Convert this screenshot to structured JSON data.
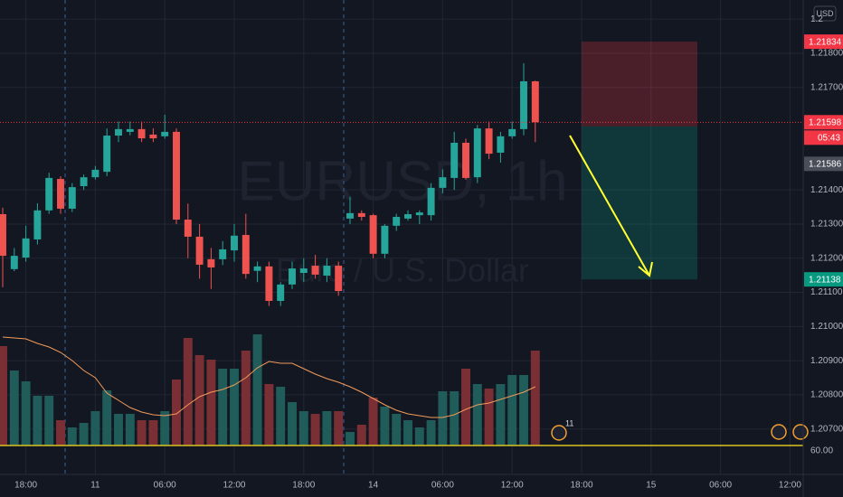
{
  "chart_data": {
    "type": "candlestick",
    "title": "EURUSD, 1h",
    "subtitle": "Euro / U.S. Dollar",
    "currency": "USD",
    "open": [
      1.21329,
      1.21168,
      1.21202,
      1.21255,
      1.2134,
      1.21432,
      1.21345,
      1.21411,
      1.21437,
      1.21453,
      1.21559,
      1.2157,
      1.21578,
      1.21562,
      1.21557,
      1.2157,
      1.21313,
      1.21263,
      1.21197,
      1.21197,
      1.21223,
      1.21268,
      1.21163,
      1.21176,
      1.21075,
      1.21123,
      1.21157,
      1.21178,
      1.21149,
      1.21178,
      1.21316,
      1.21332,
      1.21326,
      1.21213,
      1.21295,
      1.21316,
      1.21326,
      1.21326,
      1.21406,
      1.21435,
      1.21538,
      1.21437,
      1.2158,
      1.21509,
      1.21557,
      1.21578,
      1.21718
    ],
    "high": [
      1.21348,
      1.2123,
      1.21295,
      1.21361,
      1.2145,
      1.2144,
      1.2142,
      1.21445,
      1.2147,
      1.2158,
      1.216,
      1.216,
      1.216,
      1.2158,
      1.2162,
      1.2158,
      1.2136,
      1.213,
      1.2123,
      1.2125,
      1.213,
      1.2133,
      1.2119,
      1.2119,
      1.2113,
      1.2119,
      1.212,
      1.2121,
      1.212,
      1.2119,
      1.2138,
      1.2134,
      1.2133,
      1.213,
      1.2133,
      1.2134,
      1.2134,
      1.2142,
      1.2146,
      1.2157,
      1.2155,
      1.2159,
      1.216,
      1.2157,
      1.216,
      1.21771,
      1.2172
    ],
    "low": [
      1.21115,
      1.21162,
      1.2119,
      1.2124,
      1.2133,
      1.2133,
      1.21335,
      1.214,
      1.2143,
      1.2144,
      1.2154,
      1.2156,
      1.2154,
      1.2154,
      1.2155,
      1.213,
      1.212,
      1.2114,
      1.2111,
      1.2118,
      1.2119,
      1.2114,
      1.2113,
      1.2106,
      1.2106,
      1.2111,
      1.2113,
      1.2114,
      1.2113,
      1.2109,
      1.213,
      1.2131,
      1.212,
      1.212,
      1.2128,
      1.2131,
      1.213,
      1.2131,
      1.2139,
      1.214,
      1.2143,
      1.2142,
      1.2149,
      1.2148,
      1.2155,
      1.2156,
      1.2154
    ],
    "close": [
      1.21207,
      1.21207,
      1.21258,
      1.2134,
      1.21435,
      1.21345,
      1.21408,
      1.21437,
      1.21459,
      1.21559,
      1.21578,
      1.21578,
      1.21551,
      1.21551,
      1.2157,
      1.21313,
      1.21263,
      1.21181,
      1.21173,
      1.21226,
      1.21266,
      1.21154,
      1.21176,
      1.21075,
      1.21123,
      1.2117,
      1.2117,
      1.21152,
      1.21178,
      1.21104,
      1.21332,
      1.21321,
      1.21213,
      1.21295,
      1.21321,
      1.21329,
      1.21334,
      1.21406,
      1.21437,
      1.21538,
      1.21435,
      1.2158,
      1.21506,
      1.21557,
      1.21578,
      1.21718,
      1.21598
    ],
    "volume": [
      110,
      83,
      71,
      55,
      55,
      28,
      20,
      25,
      38,
      61,
      35,
      35,
      28,
      28,
      38,
      73,
      119,
      100,
      95,
      85,
      85,
      105,
      123,
      68,
      65,
      48,
      38,
      35,
      38,
      38,
      15,
      23,
      53,
      43,
      35,
      28,
      20,
      28,
      60,
      60,
      85,
      68,
      63,
      68,
      78,
      78,
      105
    ],
    "volume_ma": [
      120,
      119,
      118,
      113,
      109,
      103,
      94,
      83,
      75,
      58,
      50,
      42,
      37,
      34,
      33,
      35,
      45,
      54,
      59,
      62,
      67,
      75,
      86,
      93,
      91,
      91,
      85,
      79,
      74,
      70,
      65,
      59,
      52,
      45,
      39,
      35,
      33,
      31,
      31,
      34,
      40,
      45,
      47,
      51,
      55,
      59,
      65
    ],
    "up_color": "#26a69a",
    "down_color": "#ef5350",
    "volume_up_color": "#1f5c5a",
    "volume_down_color": "#7a2f35",
    "ma_color": "#f29b5a",
    "xlim": [
      -0.234,
      69.14
    ],
    "xticks": [
      {
        "value": 2,
        "label": "18:00"
      },
      {
        "value": 8,
        "label": "11"
      },
      {
        "value": 14,
        "label": "06:00"
      },
      {
        "value": 20,
        "label": "12:00"
      },
      {
        "value": 26,
        "label": "18:00"
      },
      {
        "value": 32,
        "label": "14"
      },
      {
        "value": 38,
        "label": "06:00"
      },
      {
        "value": 44,
        "label": "12:00"
      },
      {
        "value": 50,
        "label": "18:00"
      },
      {
        "value": 56,
        "label": "15"
      },
      {
        "value": 62,
        "label": "06:00"
      },
      {
        "value": 68,
        "label": "12:00"
      }
    ],
    "ylim": [
      1.20567,
      1.21956
    ],
    "yticks": [
      {
        "value": 1.219,
        "label": "1.2"
      },
      {
        "value": 1.218,
        "label": "1.21800"
      },
      {
        "value": 1.217,
        "label": "1.21700"
      },
      {
        "value": 1.214,
        "label": "1.21400"
      },
      {
        "value": 1.213,
        "label": "1.21300"
      },
      {
        "value": 1.212,
        "label": "1.21200"
      },
      {
        "value": 1.211,
        "label": "1.21100"
      },
      {
        "value": 1.21,
        "label": "1.21000"
      },
      {
        "value": 1.209,
        "label": "1.20900"
      },
      {
        "value": 1.208,
        "label": "1.20800"
      },
      {
        "value": 1.207,
        "label": "1.20700"
      }
    ],
    "volume_ylim": [
      0,
      128
    ],
    "volume_axis_label": "60.00",
    "price_labels": [
      {
        "value": 1.21834,
        "label": "1.21834",
        "color": "#f23645"
      },
      {
        "value": 1.21598,
        "label": "1.21598",
        "color": "#f23645",
        "countdown": "05:43"
      },
      {
        "value": 1.21586,
        "label": "1.21586",
        "color": "#4a4e59"
      },
      {
        "value": 1.21138,
        "label": "1.21138",
        "color": "#089981"
      }
    ],
    "position": {
      "start": 50,
      "end": 60,
      "stop": 1.21834,
      "entry": 1.21586,
      "target": 1.21138
    },
    "event_badge": "11"
  }
}
